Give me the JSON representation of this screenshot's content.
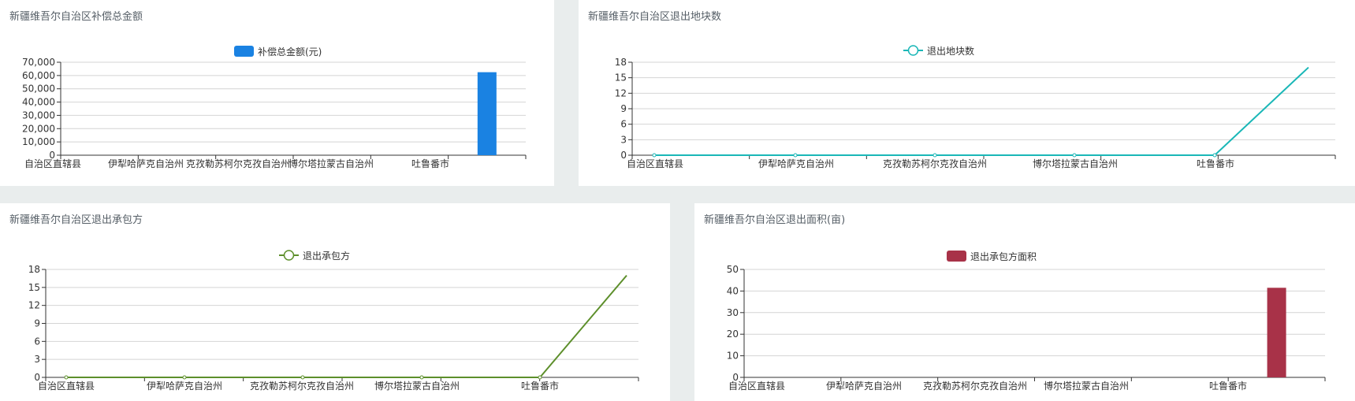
{
  "categories_note": "",
  "colors": {
    "blue": "#1a82e2",
    "teal": "#1ab7b7",
    "green": "#5d8f2b",
    "crimson": "#a83248"
  },
  "chart_data": [
    {
      "id": "compensation",
      "type": "bar",
      "title": "新疆维吾尔自治区补偿总金额",
      "legend": "补偿总金额(元)",
      "categories": [
        "自治区直辖县",
        "伊犁哈萨克自治州",
        "克孜勒苏柯尔克孜自治州",
        "博尔塔拉蒙古自治州",
        "吐鲁番市",
        ""
      ],
      "values": [
        0,
        0,
        0,
        0,
        0,
        62500
      ],
      "ylim": [
        0,
        70000
      ],
      "yticks": [
        "0",
        "10,000",
        "20,000",
        "30,000",
        "40,000",
        "50,000",
        "60,000",
        "70,000"
      ],
      "color": "#1a82e2"
    },
    {
      "id": "plots",
      "type": "line",
      "title": "新疆维吾尔自治区退出地块数",
      "legend": "退出地块数",
      "categories": [
        "自治区直辖县",
        "伊犁哈萨克自治州",
        "克孜勒苏柯尔克孜自治州",
        "博尔塔拉蒙古自治州",
        "吐鲁番市",
        ""
      ],
      "values": [
        0,
        0,
        0,
        0,
        0,
        17
      ],
      "ylim": [
        0,
        18
      ],
      "yticks": [
        "0",
        "3",
        "6",
        "9",
        "12",
        "15",
        "18"
      ],
      "color": "#1ab7b7"
    },
    {
      "id": "contractors",
      "type": "line",
      "title": "新疆维吾尔自治区退出承包方",
      "legend": "退出承包方",
      "categories": [
        "自治区直辖县",
        "伊犁哈萨克自治州",
        "克孜勒苏柯尔克孜自治州",
        "博尔塔拉蒙古自治州",
        "吐鲁番市",
        ""
      ],
      "values": [
        0,
        0,
        0,
        0,
        0,
        17
      ],
      "ylim": [
        0,
        18
      ],
      "yticks": [
        "0",
        "3",
        "6",
        "9",
        "12",
        "15",
        "18"
      ],
      "color": "#5d8f2b"
    },
    {
      "id": "area",
      "type": "bar",
      "title": "新疆维吾尔自治区退出面积(亩)",
      "legend": "退出承包方面积",
      "categories": [
        "自治区直辖县",
        "伊犁哈萨克自治州",
        "克孜勒苏柯尔克孜自治州",
        "博尔塔拉蒙古自治州",
        "吐鲁番市",
        ""
      ],
      "values": [
        0,
        0,
        0,
        0,
        0,
        41.5
      ],
      "ylim": [
        0,
        50
      ],
      "yticks": [
        "0",
        "10",
        "20",
        "30",
        "40",
        "50"
      ],
      "color": "#a83248"
    }
  ]
}
